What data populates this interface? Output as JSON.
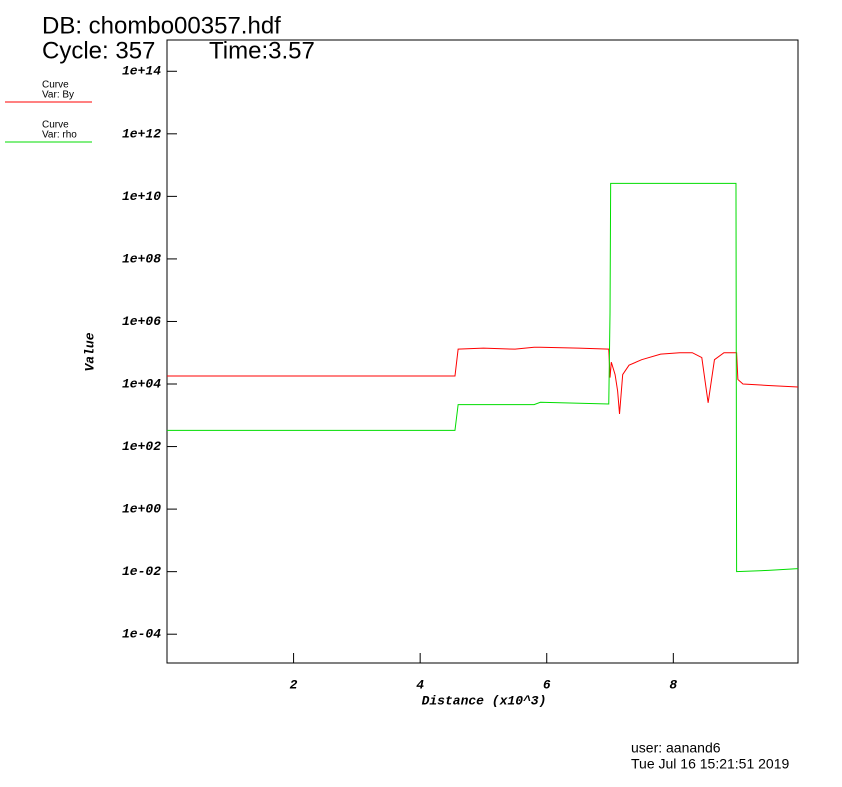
{
  "header": {
    "db": "DB: chombo00357.hdf",
    "cycle": "Cycle: 357",
    "time": "Time:3.57"
  },
  "footer": {
    "user": "user: aanand6",
    "date": "Tue Jul 16 15:21:51 2019"
  },
  "chart_data": {
    "type": "line",
    "xlabel": "Distance (x10^3)",
    "ylabel": "Value",
    "log_y": true,
    "xlim": [
      0,
      9.97
    ],
    "ylim": [
      1.2e-05,
      1000000000000000.0
    ],
    "xticks": [
      2,
      4,
      6,
      8
    ],
    "yticks": [
      {
        "value": 0.0001,
        "label": "1e-04"
      },
      {
        "value": 0.01,
        "label": "1e-02"
      },
      {
        "value": 1,
        "label": "1e+00"
      },
      {
        "value": 100,
        "label": "1e+02"
      },
      {
        "value": 10000,
        "label": "1e+04"
      },
      {
        "value": 1000000.0,
        "label": "1e+06"
      },
      {
        "value": 100000000.0,
        "label": "1e+08"
      },
      {
        "value": 10000000000.0,
        "label": "1e+10"
      },
      {
        "value": 1000000000000.0,
        "label": "1e+12"
      },
      {
        "value": 100000000000000.0,
        "label": "1e+14"
      }
    ],
    "series": [
      {
        "label": "Curve",
        "name": "Var: By",
        "color": "#ff0000",
        "x": [
          0,
          4.55,
          4.6,
          5.0,
          5.5,
          5.8,
          5.9,
          6.5,
          6.98,
          7.0,
          7.02,
          7.08,
          7.12,
          7.15,
          7.2,
          7.3,
          7.5,
          7.8,
          8.1,
          8.3,
          8.45,
          8.55,
          8.65,
          8.8,
          9.0,
          9.02,
          9.1,
          9.5,
          9.97
        ],
        "values": [
          18000,
          18000,
          130000,
          140000,
          130000,
          150000,
          150000,
          140000,
          130000,
          16000,
          50000,
          20000,
          6000,
          1100,
          20000,
          40000,
          60000,
          90000,
          100000,
          100000,
          70000,
          2500,
          60000,
          100000,
          100000,
          14000,
          10000,
          9000,
          8000
        ]
      },
      {
        "label": "Curve",
        "name": "Var: rho",
        "color": "#00dd00",
        "x": [
          0,
          4.55,
          4.6,
          5.8,
          5.9,
          6.98,
          7.0,
          7.01,
          8.99,
          9.0,
          9.5,
          9.97
        ],
        "values": [
          330,
          330,
          2200,
          2200,
          2600,
          2300,
          2000000,
          26000000000,
          26000000000,
          0.01,
          0.011,
          0.0125
        ]
      }
    ]
  }
}
